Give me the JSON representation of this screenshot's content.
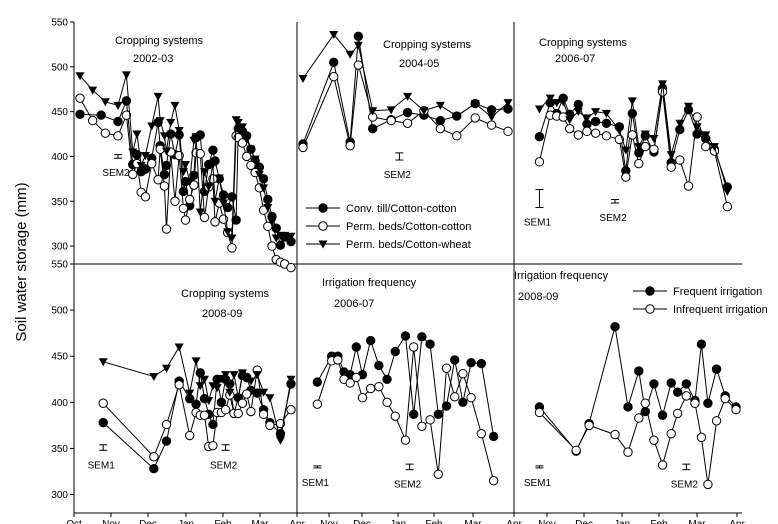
{
  "figure": {
    "ylabel": "Soil water storage (mm)",
    "month_ticks": [
      "Oct",
      "Nov",
      "Dec",
      "Jan",
      "Feb",
      "Mar",
      "Apr",
      "Nov",
      "Dec",
      "Jan",
      "Feb",
      "Mar",
      "Apr",
      "Nov",
      "Dec",
      "Jan",
      "Feb",
      "Mar",
      "Apr"
    ],
    "top_yticks": [
      "550",
      "500",
      "450",
      "400",
      "350",
      "300"
    ],
    "bottom_yticks": [
      "550",
      "500",
      "450",
      "400",
      "350",
      "300"
    ]
  },
  "chart_data": [
    {
      "type": "line",
      "row": "top",
      "col": 0,
      "title_line1": "Cropping systems",
      "title_line2": "2002-03",
      "ylim": [
        280,
        550
      ],
      "sem": [
        {
          "label": "SEM2",
          "x": 0.18,
          "y": 400,
          "half": 2
        }
      ],
      "series": [
        {
          "name": "Conv. till/Cotton-cotton",
          "marker": "filled",
          "x": [
            0.0,
            0.1,
            0.18,
            0.22,
            0.25,
            0.27,
            0.29,
            0.31,
            0.34,
            0.37,
            0.38,
            0.4,
            0.41,
            0.43,
            0.45,
            0.47,
            0.49,
            0.5,
            0.52,
            0.54,
            0.55,
            0.57,
            0.59,
            0.61,
            0.63,
            0.64,
            0.66,
            0.68,
            0.7,
            0.72,
            0.74,
            0.75,
            0.77,
            0.79,
            0.81,
            0.83,
            0.85,
            0.87,
            0.89,
            0.91,
            0.93,
            0.95,
            0.97,
            1.0
          ],
          "y": [
            447,
            446,
            439,
            462,
            391,
            402,
            383,
            386,
            398,
            438,
            412,
            380,
            390,
            425,
            402,
            424,
            361,
            372,
            345,
            379,
            421,
            424,
            361,
            391,
            407,
            395,
            375,
            357,
            343,
            355,
            329,
            431,
            428,
            423,
            408,
            395,
            388,
            375,
            352,
            333,
            320,
            301,
            310,
            305
          ]
        },
        {
          "name": "Perm. beds/Cotton-cotton",
          "marker": "open",
          "x": [
            0.0,
            0.06,
            0.12,
            0.18,
            0.22,
            0.25,
            0.27,
            0.29,
            0.31,
            0.34,
            0.37,
            0.38,
            0.4,
            0.41,
            0.43,
            0.45,
            0.47,
            0.49,
            0.5,
            0.52,
            0.54,
            0.55,
            0.57,
            0.59,
            0.61,
            0.63,
            0.64,
            0.66,
            0.68,
            0.7,
            0.72,
            0.74,
            0.75,
            0.77,
            0.79,
            0.81,
            0.83,
            0.85,
            0.87,
            0.89,
            0.91,
            0.93,
            0.95,
            0.97,
            1.0
          ],
          "y": [
            465,
            440,
            426,
            423,
            446,
            380,
            392,
            360,
            355,
            392,
            374,
            408,
            367,
            319,
            405,
            350,
            401,
            342,
            329,
            352,
            368,
            404,
            403,
            332,
            366,
            375,
            327,
            348,
            330,
            315,
            298,
            423,
            421,
            415,
            400,
            390,
            382,
            365,
            340,
            322,
            300,
            285,
            282,
            280,
            276
          ]
        },
        {
          "name": "Perm. beds/Cotton-wheat",
          "marker": "triangle",
          "x": [
            0.0,
            0.06,
            0.12,
            0.18,
            0.22,
            0.25,
            0.27,
            0.29,
            0.31,
            0.34,
            0.37,
            0.38,
            0.4,
            0.41,
            0.43,
            0.45,
            0.47,
            0.49,
            0.5,
            0.52,
            0.54,
            0.55,
            0.57,
            0.59,
            0.61,
            0.63,
            0.64,
            0.66,
            0.68,
            0.7,
            0.72,
            0.74,
            0.75,
            0.77,
            0.79,
            0.81,
            0.83,
            0.85,
            0.87,
            0.89,
            0.91,
            0.93,
            0.95,
            0.97,
            1.0
          ],
          "y": [
            490,
            474,
            461,
            457,
            491,
            405,
            425,
            390,
            401,
            434,
            467,
            440,
            423,
            406,
            438,
            457,
            429,
            383,
            391,
            372,
            418,
            422,
            338,
            383,
            366,
            391,
            350,
            376,
            348,
            316,
            309,
            441,
            438,
            433,
            419,
            408,
            397,
            380,
            365,
            343,
            327,
            309,
            312,
            312,
            311
          ]
        }
      ]
    },
    {
      "type": "line",
      "row": "top",
      "col": 1,
      "title_line1": "Cropping systems",
      "title_line2": "2004-05",
      "ylim": [
        280,
        550
      ],
      "sem": [
        {
          "label": "SEM2",
          "x": 0.47,
          "y": 400,
          "half": 4
        }
      ],
      "legend": true,
      "series": [
        {
          "name": "Conv. till/Cotton-cotton",
          "marker": "filled",
          "x": [
            0.0,
            0.15,
            0.23,
            0.27,
            0.34,
            0.43,
            0.51,
            0.59,
            0.67,
            0.75,
            0.84,
            0.92,
            1.0
          ],
          "y": [
            414,
            505,
            416,
            534,
            431,
            441,
            449,
            446,
            440,
            445,
            459,
            452,
            453
          ]
        },
        {
          "name": "Perm. beds/Cotton-cotton",
          "marker": "open",
          "x": [
            0.0,
            0.15,
            0.23,
            0.27,
            0.34,
            0.43,
            0.51,
            0.59,
            0.67,
            0.75,
            0.84,
            0.92,
            1.0
          ],
          "y": [
            410,
            489,
            412,
            502,
            444,
            440,
            437,
            451,
            431,
            423,
            443,
            435,
            428
          ]
        },
        {
          "name": "Perm. beds/Cotton-wheat",
          "marker": "triangle",
          "x": [
            0.0,
            0.15,
            0.23,
            0.27,
            0.34,
            0.43,
            0.51,
            0.59,
            0.67,
            0.75,
            0.84,
            0.92,
            1.0
          ],
          "y": [
            487,
            536,
            514,
            524,
            451,
            452,
            467,
            451,
            457,
            445,
            459,
            444,
            460
          ]
        }
      ]
    },
    {
      "type": "line",
      "row": "top",
      "col": 2,
      "title_line1": "Cropping systems",
      "title_line2": "2006-07",
      "ylim": [
        280,
        550
      ],
      "sem": [
        {
          "label": "SEM1",
          "x": 0.09,
          "y": 353,
          "half": 10
        },
        {
          "label": "SEM2",
          "x": 0.44,
          "y": 350,
          "half": 2
        }
      ],
      "series": [
        {
          "name": "Conv. till/Cotton-cotton",
          "marker": "filled",
          "x": [
            0.09,
            0.14,
            0.17,
            0.2,
            0.23,
            0.27,
            0.31,
            0.35,
            0.4,
            0.46,
            0.49,
            0.52,
            0.55,
            0.58,
            0.62,
            0.66,
            0.7,
            0.74,
            0.78,
            0.82,
            0.86,
            0.9,
            0.96
          ],
          "y": [
            422,
            460,
            448,
            465,
            447,
            458,
            436,
            439,
            437,
            433,
            384,
            448,
            404,
            423,
            405,
            476,
            393,
            430,
            452,
            425,
            420,
            408,
            366
          ]
        },
        {
          "name": "Perm. beds/Cotton-cotton",
          "marker": "open",
          "x": [
            0.09,
            0.14,
            0.17,
            0.2,
            0.23,
            0.27,
            0.31,
            0.35,
            0.4,
            0.46,
            0.49,
            0.52,
            0.55,
            0.58,
            0.62,
            0.66,
            0.7,
            0.74,
            0.78,
            0.82,
            0.86,
            0.9,
            0.96
          ],
          "y": [
            394,
            446,
            445,
            444,
            431,
            424,
            428,
            426,
            423,
            419,
            377,
            424,
            392,
            411,
            408,
            472,
            388,
            396,
            367,
            444,
            411,
            406,
            344
          ]
        },
        {
          "name": "Perm. beds/Cotton-wheat",
          "marker": "triangle",
          "x": [
            0.09,
            0.14,
            0.17,
            0.2,
            0.23,
            0.27,
            0.31,
            0.35,
            0.4,
            0.46,
            0.49,
            0.52,
            0.55,
            0.58,
            0.62,
            0.66,
            0.7,
            0.74,
            0.78,
            0.82,
            0.86,
            0.9,
            0.96
          ],
          "y": [
            453,
            465,
            460,
            461,
            441,
            450,
            443,
            450,
            448,
            429,
            407,
            462,
            411,
            425,
            420,
            481,
            402,
            437,
            456,
            433,
            424,
            411,
            361
          ]
        }
      ]
    },
    {
      "type": "line",
      "row": "bottom",
      "col": 0,
      "title_line1": "Cropping systems",
      "title_line2": "2008-09",
      "ylim": [
        280,
        550
      ],
      "sem": [
        {
          "label": "SEM1",
          "x": 0.11,
          "y": 351,
          "half": 3
        },
        {
          "label": "SEM2",
          "x": 0.69,
          "y": 351,
          "half": 3
        }
      ],
      "series": [
        {
          "name": "Conv. till/Cotton-cotton",
          "marker": "filled",
          "x": [
            0.11,
            0.35,
            0.41,
            0.47,
            0.52,
            0.55,
            0.57,
            0.59,
            0.61,
            0.63,
            0.65,
            0.67,
            0.69,
            0.71,
            0.73,
            0.75,
            0.77,
            0.79,
            0.81,
            0.84,
            0.87,
            0.9,
            0.95,
            1.0
          ],
          "y": [
            378,
            328,
            358,
            423,
            404,
            398,
            432,
            404,
            387,
            376,
            425,
            400,
            425,
            420,
            388,
            405,
            429,
            427,
            413,
            410,
            392,
            378,
            366,
            420
          ]
        },
        {
          "name": "Perm. beds/Cotton-cotton",
          "marker": "open",
          "x": [
            0.11,
            0.35,
            0.41,
            0.47,
            0.52,
            0.55,
            0.57,
            0.59,
            0.61,
            0.63,
            0.65,
            0.67,
            0.69,
            0.71,
            0.73,
            0.75,
            0.77,
            0.79,
            0.81,
            0.84,
            0.87,
            0.9,
            0.95,
            1.0
          ],
          "y": [
            399,
            341,
            376,
            419,
            364,
            389,
            386,
            386,
            352,
            353,
            389,
            389,
            392,
            408,
            388,
            388,
            399,
            409,
            390,
            435,
            387,
            375,
            377,
            392
          ]
        },
        {
          "name": "Perm. beds/Cotton-wheat",
          "marker": "triangle",
          "x": [
            0.11,
            0.35,
            0.41,
            0.47,
            0.52,
            0.55,
            0.57,
            0.59,
            0.61,
            0.63,
            0.65,
            0.67,
            0.69,
            0.71,
            0.73,
            0.75,
            0.77,
            0.79,
            0.81,
            0.84,
            0.87,
            0.9,
            0.95,
            1.0
          ],
          "y": [
            444,
            428,
            437,
            460,
            410,
            445,
            418,
            425,
            402,
            418,
            416,
            426,
            430,
            411,
            430,
            405,
            432,
            426,
            423,
            430,
            411,
            405,
            359,
            425
          ]
        }
      ]
    },
    {
      "type": "line",
      "row": "bottom",
      "col": 1,
      "title_line1": "Irrigation frequency",
      "title_line2": "2006-07",
      "ylim": [
        280,
        550
      ],
      "sem": [
        {
          "label": "SEM1",
          "x": 0.07,
          "y": 330,
          "half": 1
        },
        {
          "label": "SEM2",
          "x": 0.52,
          "y": 330,
          "half": 3
        }
      ],
      "series": [
        {
          "name": "Frequent irrigation",
          "marker": "filled",
          "x": [
            0.07,
            0.14,
            0.17,
            0.2,
            0.23,
            0.26,
            0.29,
            0.33,
            0.37,
            0.41,
            0.45,
            0.5,
            0.54,
            0.58,
            0.62,
            0.66,
            0.7,
            0.74,
            0.78,
            0.82,
            0.87,
            0.93
          ],
          "y": [
            422,
            450,
            450,
            433,
            430,
            460,
            430,
            467,
            440,
            425,
            455,
            472,
            387,
            471,
            463,
            387,
            396,
            446,
            400,
            443,
            442,
            363
          ]
        },
        {
          "name": "Infrequent irrigation",
          "marker": "open",
          "x": [
            0.07,
            0.14,
            0.17,
            0.2,
            0.23,
            0.26,
            0.29,
            0.33,
            0.37,
            0.41,
            0.45,
            0.5,
            0.54,
            0.58,
            0.62,
            0.66,
            0.7,
            0.74,
            0.78,
            0.82,
            0.87,
            0.93
          ],
          "y": [
            398,
            445,
            446,
            425,
            421,
            427,
            405,
            415,
            417,
            400,
            385,
            359,
            460,
            374,
            381,
            322,
            437,
            406,
            431,
            405,
            366,
            315
          ]
        }
      ]
    },
    {
      "type": "line",
      "row": "bottom",
      "col": 2,
      "title_line1": "Irrigation frequency",
      "title_line2": "2008-09",
      "ylim": [
        280,
        550
      ],
      "sem": [
        {
          "label": "SEM1",
          "x": 0.09,
          "y": 330,
          "half": 1
        },
        {
          "label": "SEM2",
          "x": 0.77,
          "y": 330,
          "half": 3
        }
      ],
      "legend": true,
      "series": [
        {
          "name": "Frequent irrigation",
          "marker": "filled",
          "x": [
            0.09,
            0.26,
            0.32,
            0.44,
            0.5,
            0.55,
            0.58,
            0.62,
            0.66,
            0.7,
            0.73,
            0.77,
            0.81,
            0.84,
            0.87,
            0.91,
            0.95,
            1.0
          ],
          "y": [
            395,
            347,
            377,
            482,
            395,
            434,
            390,
            420,
            386,
            421,
            411,
            420,
            402,
            463,
            399,
            436,
            407,
            395
          ]
        },
        {
          "name": "Infrequent irrigation",
          "marker": "open",
          "x": [
            0.09,
            0.26,
            0.32,
            0.44,
            0.5,
            0.55,
            0.58,
            0.62,
            0.66,
            0.7,
            0.73,
            0.77,
            0.81,
            0.84,
            0.87,
            0.91,
            0.95,
            1.0
          ],
          "y": [
            389,
            348,
            375,
            365,
            346,
            383,
            399,
            359,
            332,
            366,
            388,
            407,
            399,
            362,
            311,
            380,
            404,
            392
          ]
        }
      ]
    }
  ]
}
